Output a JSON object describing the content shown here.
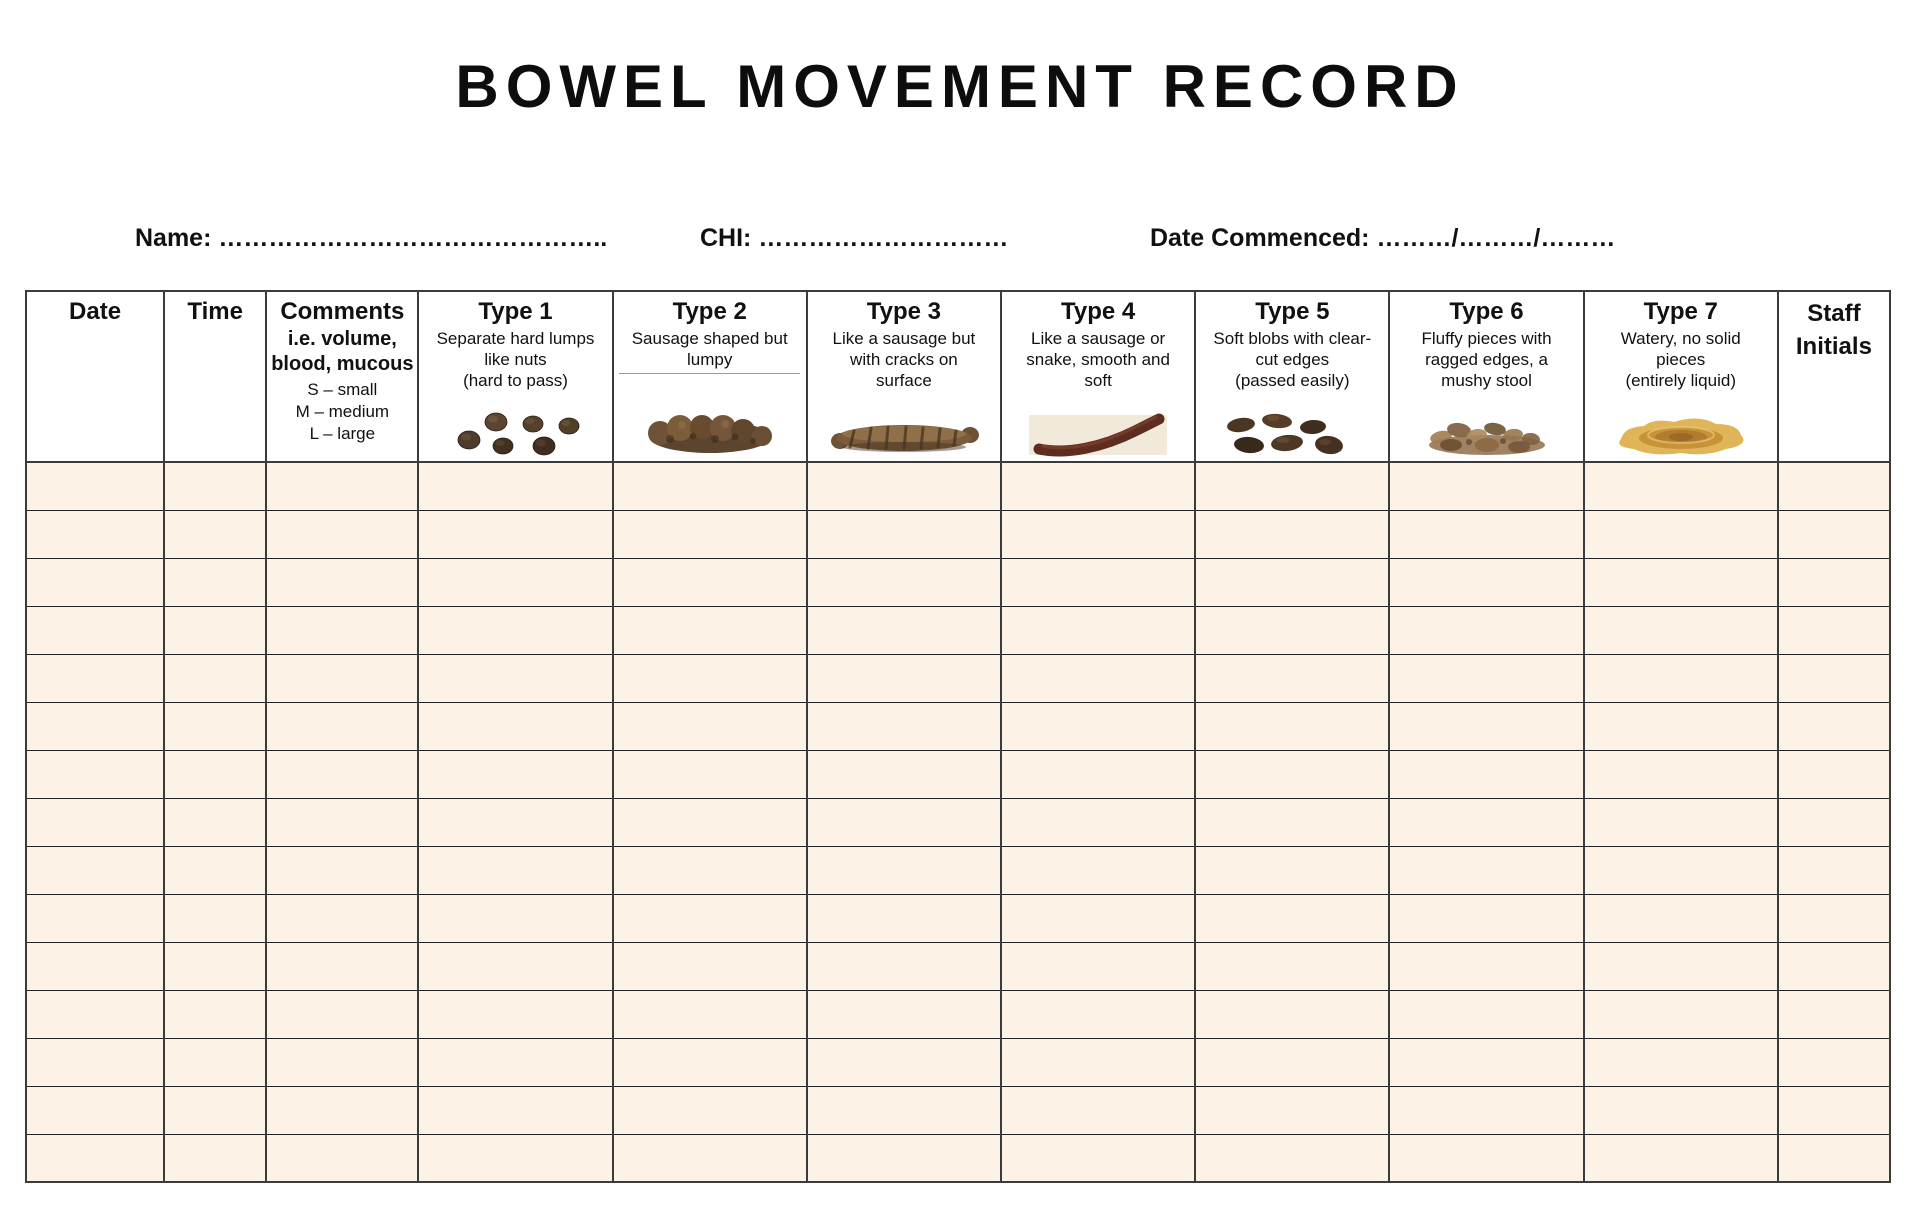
{
  "title": "BOWEL MOVEMENT RECORD",
  "fields": {
    "name": "Name: ………………………………………..",
    "chi": "CHI: …………………………",
    "date_commenced": "Date Commenced: ………/………/………"
  },
  "table": {
    "empty_row_count": 15,
    "headers": {
      "date": "Date",
      "time": "Time",
      "comments": {
        "title": "Comments",
        "subtitle": [
          "i.e. volume,",
          "blood, mucous"
        ],
        "legend": [
          "S – small",
          "M – medium",
          "L – large"
        ]
      },
      "types": [
        {
          "title": "Type 1",
          "description": [
            "Separate hard lumps",
            "like nuts",
            "(hard to pass)"
          ],
          "icon": "type1-hard-lumps-image"
        },
        {
          "title": "Type 2",
          "description": [
            "Sausage shaped but",
            "lumpy"
          ],
          "icon": "type2-lumpy-sausage-image"
        },
        {
          "title": "Type 3",
          "description": [
            "Like a sausage but",
            "with cracks on",
            "surface"
          ],
          "icon": "type3-cracked-sausage-image"
        },
        {
          "title": "Type 4",
          "description": [
            "Like a sausage or",
            "snake, smooth and",
            "soft"
          ],
          "icon": "type4-smooth-sausage-image"
        },
        {
          "title": "Type 5",
          "description": [
            "Soft blobs with clear-",
            "cut edges",
            "(passed easily)"
          ],
          "icon": "type5-soft-blobs-image"
        },
        {
          "title": "Type 6",
          "description": [
            "Fluffy pieces with",
            "ragged edges, a",
            "mushy stool"
          ],
          "icon": "type6-fluffy-pieces-image"
        },
        {
          "title": "Type 7",
          "description": [
            "Watery, no solid",
            "pieces",
            "(entirely liquid)"
          ],
          "icon": "type7-watery-liquid-image"
        }
      ],
      "staff": [
        "Staff",
        "Initials"
      ]
    }
  },
  "colors": {
    "grid_line": "#3b3b3b",
    "row_fill": "#fcf2e6",
    "page_background": "#ffffff",
    "text": "#111111"
  }
}
